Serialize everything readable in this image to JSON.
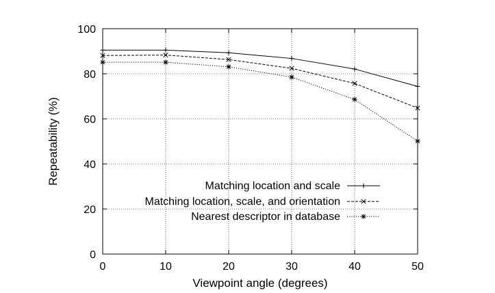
{
  "chart_data": {
    "type": "line",
    "xlabel": "Viewpoint angle (degrees)",
    "ylabel": "Repeatability (%)",
    "xlim": [
      0,
      50
    ],
    "ylim": [
      0,
      100
    ],
    "x_ticks": [
      0,
      10,
      20,
      30,
      40,
      50
    ],
    "y_ticks": [
      0,
      20,
      40,
      60,
      80,
      100
    ],
    "grid": true,
    "legend_position": "bottom-right",
    "x": [
      0,
      10,
      20,
      30,
      40,
      50
    ],
    "series": [
      {
        "name": "Matching location and scale",
        "values": [
          90.5,
          90.5,
          89.3,
          86.8,
          82.1,
          74.4
        ],
        "line_style": "solid",
        "marker": "plus"
      },
      {
        "name": "Matching location, scale, and orientation",
        "values": [
          88.1,
          88.3,
          86.3,
          82.4,
          75.7,
          64.8
        ],
        "line_style": "dashed",
        "marker": "cross"
      },
      {
        "name": "Nearest descriptor in database",
        "values": [
          85.1,
          85.1,
          83.1,
          78.5,
          68.6,
          50.1
        ],
        "line_style": "dotted",
        "marker": "star"
      }
    ]
  }
}
